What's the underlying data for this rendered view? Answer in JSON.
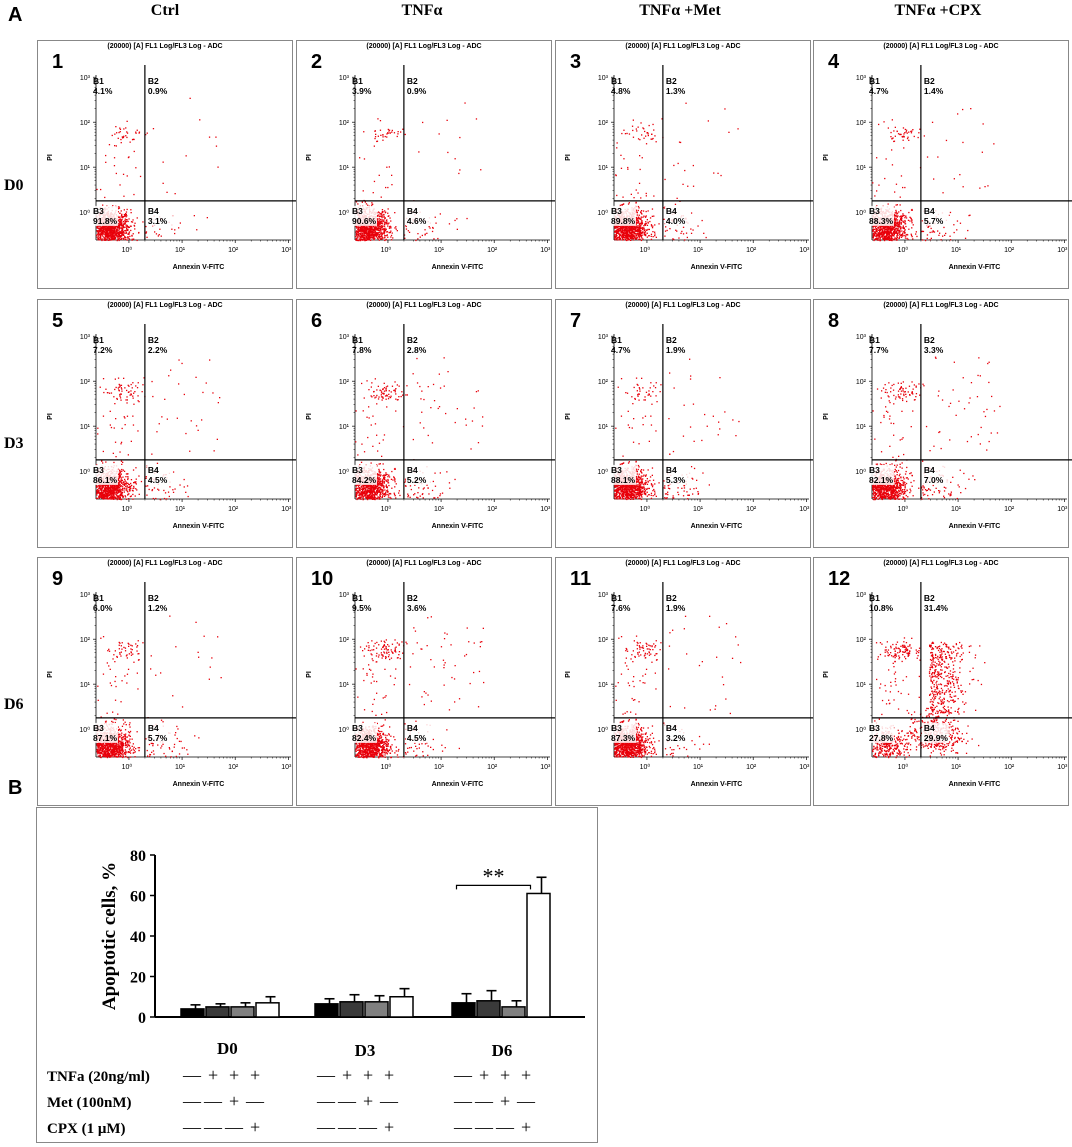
{
  "panel_a": {
    "letter": "A"
  },
  "panel_b": {
    "letter": "B"
  },
  "columns": [
    "Ctrl",
    "TNFα",
    "TNFα +Met",
    "TNFα +CPX"
  ],
  "rows": [
    "D0",
    "D3",
    "D6"
  ],
  "colors": {
    "dots": "#e8000a",
    "bar_ctrl": "#000000",
    "bar_tnf": "#3a3a3a",
    "bar_met": "#808080",
    "bar_cpx": "#ffffff"
  },
  "chart_data": [
    {
      "type": "scatter",
      "title": "Annexin V-FITC / PI flow cytometry quadrant plots",
      "header": "(20000) [A] FL1 Log/FL3 Log - ADC",
      "xlabel": "Annexin V-FITC",
      "ylabel": "PI",
      "tick_labels": [
        "10⁰",
        "10¹",
        "10²",
        "10³"
      ],
      "quadrant_names": [
        "B1",
        "B2",
        "B3",
        "B4"
      ],
      "plots": [
        {
          "n": "1",
          "row": "D0",
          "col": "Ctrl",
          "B1": "4.1%",
          "B2": "0.9%",
          "B3": "91.8%",
          "B4": "3.1%"
        },
        {
          "n": "2",
          "row": "D0",
          "col": "TNFα",
          "B1": "3.9%",
          "B2": "0.9%",
          "B3": "90.6%",
          "B4": "4.6%"
        },
        {
          "n": "3",
          "row": "D0",
          "col": "TNFα +Met",
          "B1": "4.8%",
          "B2": "1.3%",
          "B3": "89.8%",
          "B4": "4.0%"
        },
        {
          "n": "4",
          "row": "D0",
          "col": "TNFα +CPX",
          "B1": "4.7%",
          "B2": "1.4%",
          "B3": "88.3%",
          "B4": "5.7%"
        },
        {
          "n": "5",
          "row": "D3",
          "col": "Ctrl",
          "B1": "7.2%",
          "B2": "2.2%",
          "B3": "86.1%",
          "B4": "4.5%"
        },
        {
          "n": "6",
          "row": "D3",
          "col": "TNFα",
          "B1": "7.8%",
          "B2": "2.8%",
          "B3": "84.2%",
          "B4": "5.2%"
        },
        {
          "n": "7",
          "row": "D3",
          "col": "TNFα +Met",
          "B1": "4.7%",
          "B2": "1.9%",
          "B3": "88.1%",
          "B4": "5.3%"
        },
        {
          "n": "8",
          "row": "D3",
          "col": "TNFα +CPX",
          "B1": "7.7%",
          "B2": "3.3%",
          "B3": "82.1%",
          "B4": "7.0%"
        },
        {
          "n": "9",
          "row": "D6",
          "col": "Ctrl",
          "B1": "6.0%",
          "B2": "1.2%",
          "B3": "87.1%",
          "B4": "5.7%"
        },
        {
          "n": "10",
          "row": "D6",
          "col": "TNFα",
          "B1": "9.5%",
          "B2": "3.6%",
          "B3": "82.4%",
          "B4": "4.5%"
        },
        {
          "n": "11",
          "row": "D6",
          "col": "TNFα +Met",
          "B1": "7.6%",
          "B2": "1.9%",
          "B3": "87.3%",
          "B4": "3.2%"
        },
        {
          "n": "12",
          "row": "D6",
          "col": "TNFα +CPX",
          "B1": "10.8%",
          "B2": "31.4%",
          "B3": "27.8%",
          "B4": "29.9%"
        }
      ]
    },
    {
      "type": "bar",
      "ylabel": "Apoptotic cells, %",
      "ylim": [
        0,
        80
      ],
      "yticks": [
        "0",
        "20",
        "40",
        "60",
        "80"
      ],
      "categories": [
        "D0",
        "D3",
        "D6"
      ],
      "series": [
        {
          "name": "Ctrl",
          "values": [
            4,
            6.5,
            7
          ],
          "errors": [
            2,
            2.5,
            4.5
          ]
        },
        {
          "name": "TNFα",
          "values": [
            5,
            7.5,
            8
          ],
          "errors": [
            1.5,
            3.5,
            5
          ]
        },
        {
          "name": "TNFα +Met",
          "values": [
            5,
            7.5,
            5
          ],
          "errors": [
            2,
            3,
            3
          ]
        },
        {
          "name": "TNFα +CPX",
          "values": [
            7,
            10,
            61
          ],
          "errors": [
            3,
            4,
            8
          ]
        }
      ],
      "significance": "**",
      "conditions": [
        {
          "label": "TNFa (20ng/ml)",
          "signs": [
            "—",
            "+",
            "+",
            "+"
          ]
        },
        {
          "label": "Met (100nM)",
          "signs": [
            "—",
            "—",
            "+",
            "—"
          ]
        },
        {
          "label": "CPX (1 μM)",
          "signs": [
            "—",
            "—",
            "—",
            "+"
          ]
        }
      ]
    }
  ]
}
